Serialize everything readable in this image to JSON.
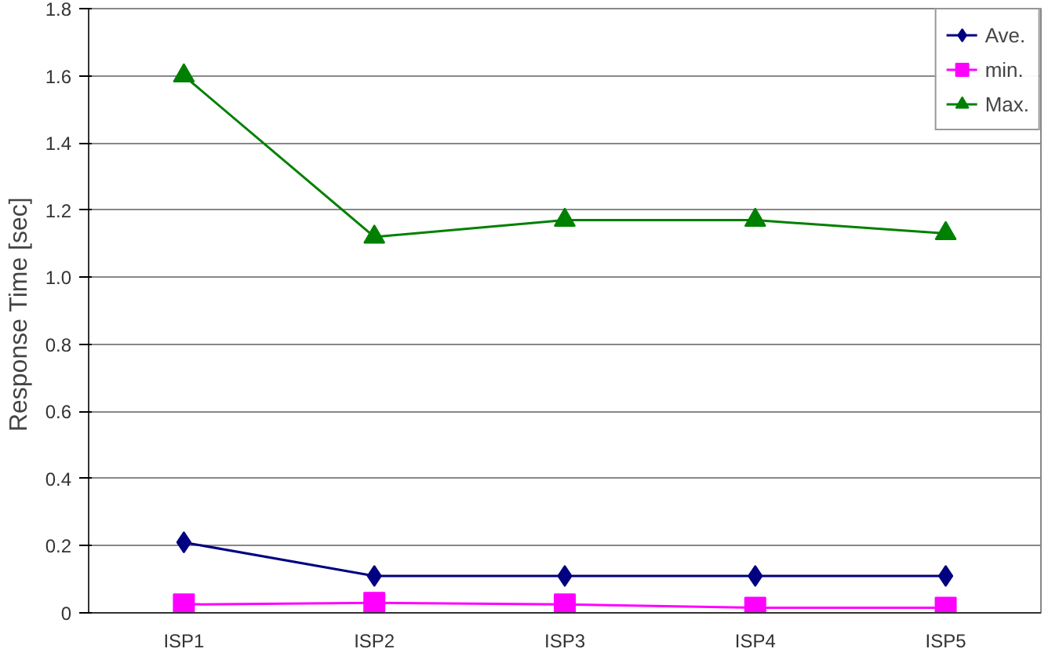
{
  "chart_data": {
    "type": "line",
    "ylabel": "Response Time  [sec]",
    "categories": [
      "ISP1",
      "ISP2",
      "ISP3",
      "ISP4",
      "ISP5"
    ],
    "series": [
      {
        "name": "Ave.",
        "color": "#000080",
        "marker": "diamond",
        "values": [
          0.21,
          0.11,
          0.11,
          0.11,
          0.11
        ]
      },
      {
        "name": "min.",
        "color": "#ff00ff",
        "marker": "square",
        "values": [
          0.025,
          0.03,
          0.025,
          0.015,
          0.015
        ]
      },
      {
        "name": "Max.",
        "color": "#008000",
        "marker": "triangle",
        "values": [
          1.6,
          1.12,
          1.17,
          1.17,
          1.13
        ]
      }
    ],
    "ylim": [
      0,
      1.8
    ],
    "yticks": [
      0,
      0.2,
      0.4,
      0.6,
      0.8,
      {
        "value": 1.0,
        "label": "1.0"
      },
      1.2,
      1.4,
      1.6,
      1.8
    ],
    "grid": "y",
    "legend": "top right",
    "line_style": "solid"
  }
}
